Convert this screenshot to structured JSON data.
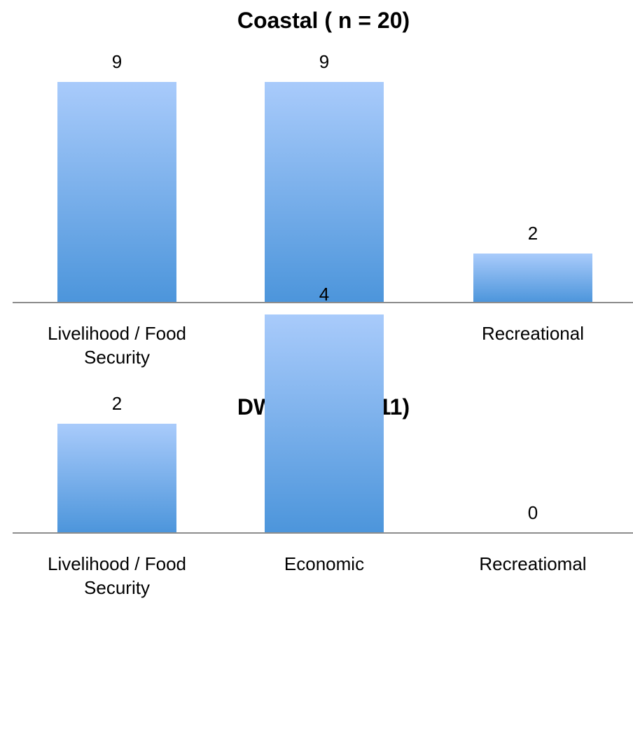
{
  "chart_data": [
    {
      "type": "bar",
      "title": "Coastal ( n  = 20)",
      "categories": [
        "Livelihood / Food Security",
        "Economic",
        "Recreational"
      ],
      "category_lines": [
        [
          "Livelihood / Food",
          "Security"
        ],
        [
          "Economic"
        ],
        [
          "Recreational"
        ]
      ],
      "values": [
        9,
        9,
        2
      ],
      "data_labels": [
        "9",
        "9",
        "2"
      ],
      "xlabel": "",
      "ylabel": "",
      "ylim": [
        0,
        9
      ],
      "grid": false,
      "legend": "none",
      "colors": {
        "bar_top": "#a9cbfb",
        "bar_bottom": "#4c95db",
        "axis": "#8c8c8c"
      }
    },
    {
      "type": "bar",
      "title": "DWFNS ( n = 11)",
      "categories": [
        "Livelihood / Food Security",
        "Economic",
        "Recreatiomal"
      ],
      "category_lines": [
        [
          "Livelihood / Food",
          "Security"
        ],
        [
          "Economic"
        ],
        [
          "Recreatiomal"
        ]
      ],
      "values": [
        2,
        4,
        0
      ],
      "data_labels": [
        "2",
        "4",
        "0"
      ],
      "xlabel": "",
      "ylabel": "",
      "ylim": [
        0,
        4
      ],
      "grid": false,
      "legend": "none",
      "colors": {
        "bar_top": "#a9cbfb",
        "bar_bottom": "#4c95db",
        "axis": "#8c8c8c"
      }
    }
  ]
}
